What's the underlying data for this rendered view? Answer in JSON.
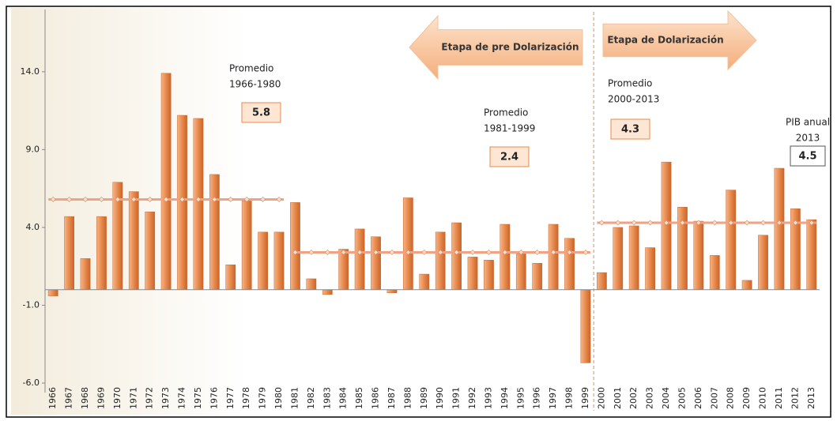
{
  "chart_data": {
    "type": "bar",
    "categories": [
      "1966",
      "1967",
      "1968",
      "1969",
      "1970",
      "1971",
      "1972",
      "1973",
      "1974",
      "1975",
      "1976",
      "1977",
      "1978",
      "1979",
      "1980",
      "1981",
      "1982",
      "1983",
      "1984",
      "1985",
      "1986",
      "1987",
      "1988",
      "1989",
      "1990",
      "1991",
      "1992",
      "1993",
      "1994",
      "1995",
      "1996",
      "1997",
      "1998",
      "1999",
      "2000",
      "2001",
      "2002",
      "2003",
      "2004",
      "2005",
      "2006",
      "2007",
      "2008",
      "2009",
      "2010",
      "2011",
      "2012",
      "2013"
    ],
    "values": [
      -0.4,
      4.7,
      2.0,
      4.7,
      6.9,
      6.3,
      5.0,
      13.9,
      11.2,
      11.0,
      7.4,
      1.6,
      5.7,
      3.7,
      3.7,
      5.6,
      0.7,
      -0.3,
      2.6,
      3.9,
      3.4,
      -0.2,
      5.9,
      1.0,
      3.7,
      4.3,
      2.1,
      1.9,
      4.2,
      2.3,
      1.7,
      4.2,
      3.3,
      -4.7,
      1.1,
      4.0,
      4.1,
      2.7,
      8.2,
      5.3,
      4.4,
      2.2,
      6.4,
      0.6,
      3.5,
      7.8,
      5.2,
      4.5
    ],
    "color": "#e8894c",
    "ylim": [
      -6,
      18
    ],
    "yticks": [
      {
        "value": -6,
        "label": "-6.0"
      },
      {
        "value": -1,
        "label": "-1.0"
      },
      {
        "value": 4,
        "label": "4.0"
      },
      {
        "value": 9,
        "label": "9.0"
      },
      {
        "value": 14,
        "label": "14.0"
      }
    ],
    "averages": [
      {
        "label": [
          "Promedio",
          "1966-1980"
        ],
        "value": 5.8,
        "start": "1966",
        "end": "1980",
        "color": "#f2a283"
      },
      {
        "label": [
          "Promedio",
          "1981-1999"
        ],
        "value": 2.4,
        "start": "1981",
        "end": "1999",
        "color": "#f2a283"
      },
      {
        "label": [
          "Promedio",
          "2000-2013"
        ],
        "value": 4.3,
        "start": "2000",
        "end": "2013",
        "color": "#f2a283"
      }
    ],
    "highlight": {
      "label": [
        "PIB anual",
        "2013"
      ],
      "value": 4.5
    },
    "annotations": [
      {
        "text": "Etapa de pre Dolarización",
        "direction": "left"
      },
      {
        "text": "Etapa de  Dolarización",
        "direction": "right"
      }
    ],
    "divider_after": "1999"
  }
}
